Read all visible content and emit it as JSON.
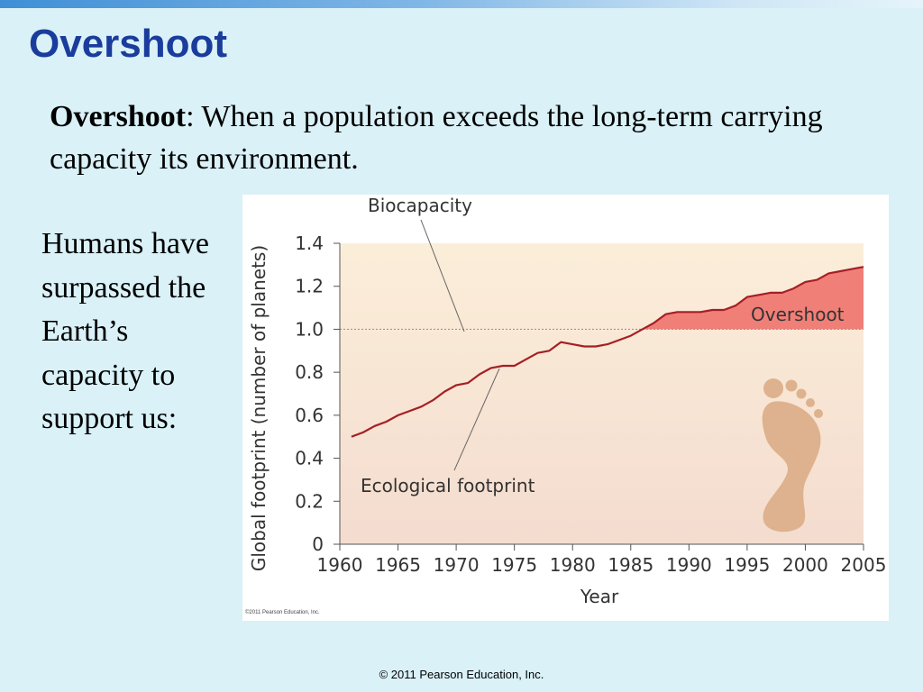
{
  "slide": {
    "title": "Overshoot",
    "definition_term": "Overshoot",
    "definition_text": ": When a population exceeds the long-term carrying capacity its environment.",
    "side_text": "Humans have surpassed the Earth’s capacity to support us:",
    "footer": "© 2011 Pearson Education, Inc.",
    "figure_credit": "©2011 Pearson Education, Inc."
  },
  "colors": {
    "title": "#1a3c9c",
    "background": "#d9f1f7",
    "footprint_line": "#a51f26",
    "overshoot_fill": "#f07f77",
    "panel_top": "#fbeed9",
    "panel_bottom": "#f4dccf",
    "footprint_icon": "#deb28e"
  },
  "chart_data": {
    "type": "line",
    "title": "",
    "xlabel": "Year",
    "ylabel": "Global footprint (number of planets)",
    "xlim": [
      1960,
      2005
    ],
    "ylim": [
      0,
      1.4
    ],
    "x_ticks": [
      "1960",
      "1965",
      "1970",
      "1975",
      "1980",
      "1985",
      "1990",
      "1995",
      "2000",
      "2005"
    ],
    "y_ticks": [
      "0",
      "0.2",
      "0.4",
      "0.6",
      "0.8",
      "1.0",
      "1.2",
      "1.4"
    ],
    "series": [
      {
        "name": "Ecological footprint",
        "x": [
          1961,
          1962,
          1963,
          1964,
          1965,
          1966,
          1967,
          1968,
          1969,
          1970,
          1971,
          1972,
          1973,
          1974,
          1975,
          1976,
          1977,
          1978,
          1979,
          1980,
          1981,
          1982,
          1983,
          1984,
          1985,
          1986,
          1987,
          1988,
          1989,
          1990,
          1991,
          1992,
          1993,
          1994,
          1995,
          1996,
          1997,
          1998,
          1999,
          2000,
          2001,
          2002,
          2003,
          2004,
          2005
        ],
        "values": [
          0.5,
          0.52,
          0.55,
          0.57,
          0.6,
          0.62,
          0.64,
          0.67,
          0.71,
          0.74,
          0.75,
          0.79,
          0.82,
          0.83,
          0.83,
          0.86,
          0.89,
          0.9,
          0.94,
          0.93,
          0.92,
          0.92,
          0.93,
          0.95,
          0.97,
          1.0,
          1.03,
          1.07,
          1.08,
          1.08,
          1.08,
          1.09,
          1.09,
          1.11,
          1.15,
          1.16,
          1.17,
          1.17,
          1.19,
          1.22,
          1.23,
          1.26,
          1.27,
          1.28,
          1.29
        ]
      },
      {
        "name": "Biocapacity",
        "x": [
          1960,
          2005
        ],
        "values": [
          1.0,
          1.0
        ]
      }
    ],
    "annotations": [
      "Biocapacity",
      "Ecological footprint",
      "Overshoot"
    ],
    "grid": false,
    "legend": "none"
  }
}
